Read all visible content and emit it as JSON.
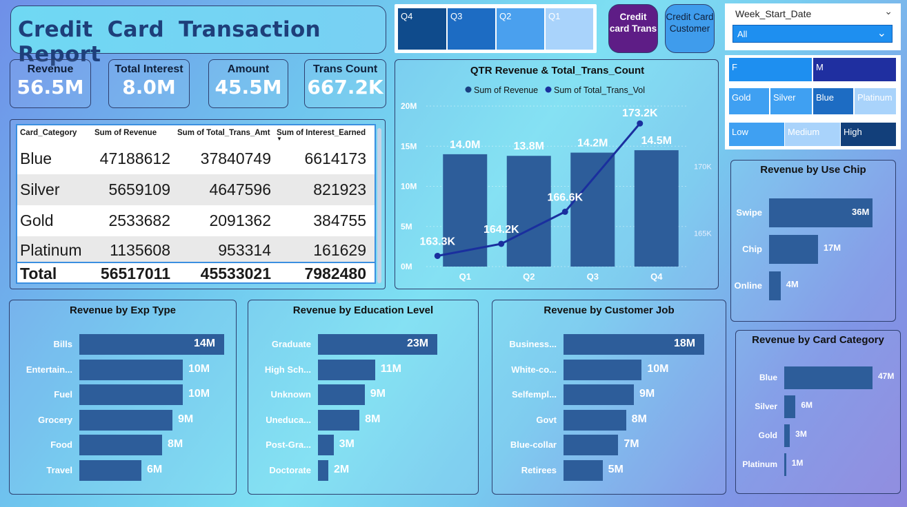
{
  "header": {
    "title": "Credit Card Transaction Report"
  },
  "kpis": [
    {
      "label": "Revenue",
      "value": "56.5M"
    },
    {
      "label": "Total Interest",
      "value": "8.0M"
    },
    {
      "label": "Amount",
      "value": "45.5M"
    },
    {
      "label": "Trans Count",
      "value": "667.2K"
    }
  ],
  "quarter_slicer": [
    "Q4",
    "Q3",
    "Q2",
    "Q1"
  ],
  "nav_buttons": {
    "trans": "Credit card Trans",
    "customer": "Credit Card Customer"
  },
  "week_slicer": {
    "label": "Week_Start_Date",
    "selected": "All"
  },
  "gender_slicer": [
    "F",
    "M"
  ],
  "card_slicer": [
    "Gold",
    "Silver",
    "Blue",
    "Platinum"
  ],
  "income_slicer": [
    "Low",
    "Medium",
    "High"
  ],
  "table": {
    "headers": [
      "Card_Category",
      "Sum of Revenue",
      "Sum of Total_Trans_Amt",
      "Sum of Interest_Earned"
    ],
    "rows": [
      [
        "Blue",
        "47188612",
        "37840749",
        "6614173"
      ],
      [
        "Silver",
        "5659109",
        "4647596",
        "821923"
      ],
      [
        "Gold",
        "2533682",
        "2091362",
        "384755"
      ],
      [
        "Platinum",
        "1135608",
        "953314",
        "161629"
      ]
    ],
    "total": [
      "Total",
      "56517011",
      "45533021",
      "7982480"
    ]
  },
  "colors": {
    "bar": "#2d5d9a",
    "line": "#1a2f9e",
    "title": "#1e3f7a",
    "nav_active": "#5e1d86",
    "nav_inactive": "#3f9cec"
  },
  "chart_data": [
    {
      "type": "bar",
      "title": "QTR Revenue & Total_Trans_Count",
      "categories": [
        "Q1",
        "Q2",
        "Q3",
        "Q4"
      ],
      "series": [
        {
          "name": "Sum of Revenue",
          "values": [
            14.0,
            13.8,
            14.2,
            14.5
          ],
          "labels": [
            "14.0M",
            "13.8M",
            "14.2M",
            "14.5M"
          ]
        },
        {
          "name": "Sum of Total_Trans_Vol",
          "values": [
            163.3,
            164.2,
            166.6,
            173.2
          ],
          "labels": [
            "163.3K",
            "164.2K",
            "166.6K",
            "173.2K"
          ],
          "type": "line"
        }
      ],
      "y_ticks": [
        "0M",
        "5M",
        "10M",
        "15M",
        "20M"
      ],
      "y2_ticks": [
        "165K",
        "170K"
      ],
      "ylim": [
        0,
        20
      ],
      "y2lim": [
        162.5,
        174.5
      ],
      "legend": "top"
    },
    {
      "type": "bar",
      "title": "Revenue by Use Chip",
      "categories": [
        "Swipe",
        "Chip",
        "Online"
      ],
      "values": [
        36,
        17,
        4
      ],
      "labels": [
        "36M",
        "17M",
        "4M"
      ]
    },
    {
      "type": "bar",
      "title": "Revenue by Card Category",
      "categories": [
        "Blue",
        "Silver",
        "Gold",
        "Platinum"
      ],
      "values": [
        47,
        6,
        3,
        1
      ],
      "labels": [
        "47M",
        "6M",
        "3M",
        "1M"
      ]
    },
    {
      "type": "bar",
      "title": "Revenue by Exp Type",
      "categories": [
        "Bills",
        "Entertain...",
        "Fuel",
        "Grocery",
        "Food",
        "Travel"
      ],
      "values": [
        14,
        10,
        10,
        9,
        8,
        6
      ],
      "labels": [
        "14M",
        "10M",
        "10M",
        "9M",
        "8M",
        "6M"
      ]
    },
    {
      "type": "bar",
      "title": "Revenue by Education Level",
      "categories": [
        "Graduate",
        "High Sch...",
        "Unknown",
        "Uneduca...",
        "Post-Gra...",
        "Doctorate"
      ],
      "values": [
        23,
        11,
        9,
        8,
        3,
        2
      ],
      "labels": [
        "23M",
        "11M",
        "9M",
        "8M",
        "3M",
        "2M"
      ]
    },
    {
      "type": "bar",
      "title": "Revenue by Customer Job",
      "categories": [
        "Business...",
        "White-co...",
        "Selfempl...",
        "Govt",
        "Blue-collar",
        "Retirees"
      ],
      "values": [
        18,
        10,
        9,
        8,
        7,
        5
      ],
      "labels": [
        "18M",
        "10M",
        "9M",
        "8M",
        "7M",
        "5M"
      ]
    }
  ]
}
